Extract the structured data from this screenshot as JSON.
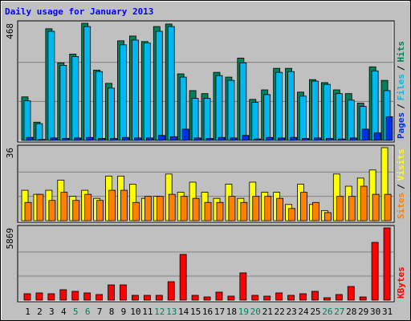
{
  "title": "Daily usage for January 2013",
  "weekend_indices": [
    4,
    5,
    11,
    12,
    18,
    19,
    25,
    26
  ],
  "weekend_label_color": "#00805c",
  "legend_separator": "/",
  "chart_data": [
    {
      "type": "bar",
      "ylim": [
        0,
        468
      ],
      "yticks": [
        468
      ],
      "grid": true,
      "series": [
        {
          "name": "Pages",
          "color": "#0030e0",
          "values": [
            12,
            4,
            10,
            8,
            10,
            12,
            8,
            8,
            12,
            10,
            10,
            20,
            15,
            45,
            10,
            8,
            12,
            10,
            20,
            6,
            12,
            10,
            12,
            8,
            10,
            8,
            6,
            10,
            45,
            30,
            95
          ]
        },
        {
          "name": "Files",
          "color": "#00b8f0",
          "values": [
            158,
            67,
            436,
            300,
            335,
            455,
            275,
            209,
            382,
            401,
            389,
            436,
            455,
            253,
            168,
            168,
            259,
            240,
            310,
            152,
            183,
            272,
            275,
            177,
            237,
            224,
            187,
            161,
            136,
            278,
            199
          ]
        },
        {
          "name": "Hits",
          "color": "#00805c",
          "values": [
            174,
            73,
            446,
            310,
            345,
            468,
            281,
            228,
            398,
            417,
            395,
            455,
            465,
            266,
            199,
            187,
            272,
            253,
            329,
            164,
            202,
            288,
            288,
            193,
            243,
            231,
            202,
            187,
            149,
            294,
            240
          ]
        }
      ]
    },
    {
      "type": "bar",
      "ylim": [
        0,
        36
      ],
      "yticks": [
        36
      ],
      "grid": true,
      "series": [
        {
          "name": "Sites",
          "color": "#ff8000",
          "values": [
            9,
            13,
            10,
            14,
            10,
            13,
            10,
            15,
            15,
            9,
            12,
            12,
            13,
            12,
            11,
            9,
            9,
            12,
            9,
            12,
            12,
            11,
            6,
            14,
            9,
            4,
            12,
            12,
            17,
            13,
            13
          ]
        },
        {
          "name": "Visits",
          "color": "#ffff00",
          "values": [
            15,
            13,
            15,
            20,
            12,
            15,
            11,
            22,
            22,
            18,
            11,
            12,
            23,
            14,
            19,
            14,
            11,
            18,
            11,
            19,
            14,
            14,
            8,
            18,
            8,
            5,
            23,
            17,
            21,
            25,
            36
          ]
        }
      ]
    },
    {
      "type": "bar",
      "ylim": [
        0,
        5869
      ],
      "yticks": [
        5869
      ],
      "grid": true,
      "categories": [
        "1",
        "2",
        "3",
        "4",
        "5",
        "6",
        "7",
        "8",
        "9",
        "10",
        "11",
        "12",
        "13",
        "14",
        "15",
        "16",
        "17",
        "18",
        "19",
        "20",
        "21",
        "22",
        "23",
        "24",
        "25",
        "26",
        "27",
        "28",
        "29",
        "30",
        "31"
      ],
      "series": [
        {
          "name": "KBytes",
          "color": "#ff0000",
          "values": [
            522,
            587,
            522,
            848,
            717,
            587,
            456,
            1239,
            1239,
            391,
            391,
            391,
            1500,
            3717,
            391,
            261,
            652,
            326,
            2217,
            391,
            326,
            587,
            391,
            522,
            717,
            196,
            456,
            1109,
            261,
            4695,
            5869
          ]
        }
      ]
    }
  ]
}
